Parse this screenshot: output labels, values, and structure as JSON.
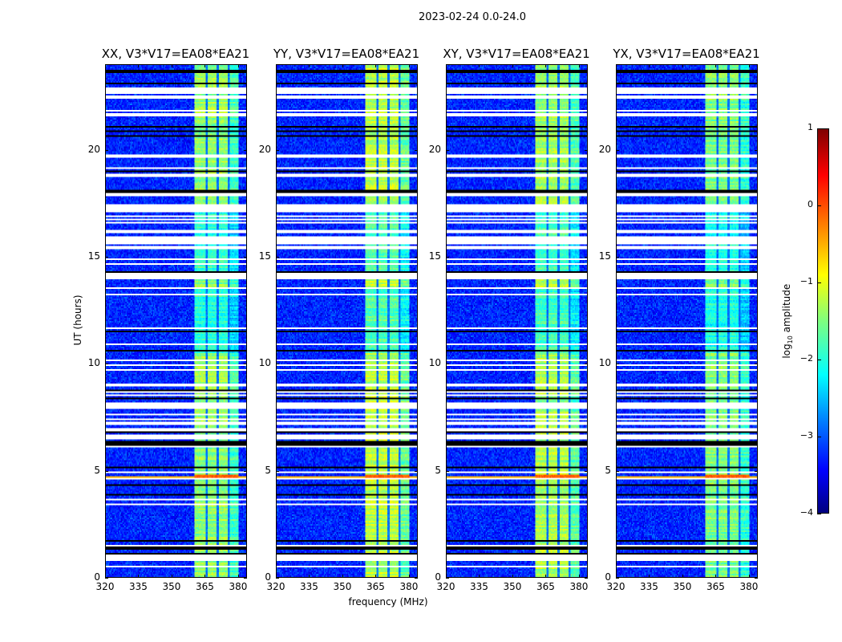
{
  "figure": {
    "suptitle": "2023-02-24 0.0-24.0",
    "xlabel": "frequency (MHz)",
    "ylabel": "UT (hours)"
  },
  "colorbar": {
    "label_prefix": "log",
    "label_sub": "10",
    "label_suffix": " amplitude",
    "range": [
      -4,
      1
    ],
    "ticks": [
      "1",
      "0",
      "−1",
      "−2",
      "−3",
      "−4"
    ],
    "tick_values": [
      1,
      0,
      -1,
      -2,
      -3,
      -4
    ],
    "colormap": "jet"
  },
  "chart_data": {
    "type": "heatmap",
    "x_range": [
      320,
      384
    ],
    "y_range": [
      0,
      24
    ],
    "x_ticks": [
      "320",
      "335",
      "350",
      "365",
      "380"
    ],
    "x_tick_values": [
      320,
      335,
      350,
      365,
      380
    ],
    "y_ticks": [
      "0",
      "5",
      "10",
      "15",
      "20"
    ],
    "y_tick_values": [
      0,
      5,
      10,
      15,
      20
    ],
    "value_label": "log10 amplitude",
    "background_level": -3.2,
    "band_MHz": [
      360.7,
      380.4
    ],
    "band_gaps_MHz": [
      366,
      371,
      376
    ],
    "rfi_event_hours": [
      4.55,
      4.8
    ],
    "flagged_white_hours": [
      [
        22.69,
        22.91
      ],
      [
        22.45,
        22.52
      ],
      [
        21.83,
        21.88
      ],
      [
        21.65,
        21.7
      ],
      [
        19.69,
        19.78
      ],
      [
        19.13,
        19.18
      ],
      [
        18.8,
        18.85
      ],
      [
        17.9,
        18.0
      ],
      [
        17.37,
        17.42
      ],
      [
        17.27,
        17.31
      ],
      [
        17.19,
        17.23
      ],
      [
        17.12,
        17.16
      ],
      [
        16.89,
        16.93
      ],
      [
        16.71,
        16.75
      ],
      [
        16.59,
        16.63
      ],
      [
        16.22,
        16.26
      ],
      [
        16.14,
        16.18
      ],
      [
        15.86,
        15.94
      ],
      [
        15.73,
        15.77
      ],
      [
        15.62,
        15.66
      ],
      [
        15.41,
        15.49
      ],
      [
        14.87,
        14.91
      ],
      [
        14.61,
        14.65
      ],
      [
        14.16,
        14.2
      ],
      [
        14.08,
        14.12
      ],
      [
        13.97,
        14.01
      ],
      [
        13.52,
        13.56
      ],
      [
        13.22,
        13.26
      ],
      [
        11.64,
        11.68
      ],
      [
        10.86,
        10.9
      ],
      [
        10.11,
        10.15
      ],
      [
        9.92,
        9.96
      ],
      [
        9.66,
        9.7
      ],
      [
        8.98,
        9.02
      ],
      [
        8.61,
        8.65
      ],
      [
        8.49,
        8.53
      ],
      [
        7.91,
        8.18
      ],
      [
        7.59,
        7.63
      ],
      [
        7.37,
        7.41
      ],
      [
        7.18,
        7.22
      ],
      [
        6.88,
        6.92
      ],
      [
        6.45,
        6.64
      ],
      [
        6.09,
        6.13
      ],
      [
        4.86,
        4.9
      ],
      [
        4.59,
        4.63
      ],
      [
        3.62,
        3.66
      ],
      [
        3.36,
        3.4
      ],
      [
        1.44,
        1.48
      ],
      [
        0.75,
        1.01
      ],
      [
        0.47,
        0.51
      ]
    ],
    "flagged_black_hours": [
      [
        23.68,
        23.72
      ],
      [
        23.15,
        23.19
      ],
      [
        21.09,
        21.13
      ],
      [
        20.87,
        20.91
      ],
      [
        20.64,
        20.68
      ],
      [
        18.96,
        19.0
      ],
      [
        18.0,
        18.15
      ],
      [
        14.27,
        14.31
      ],
      [
        11.49,
        11.53
      ],
      [
        10.56,
        10.6
      ],
      [
        8.68,
        8.72
      ],
      [
        8.34,
        8.38
      ],
      [
        6.75,
        6.8
      ],
      [
        6.15,
        6.34
      ],
      [
        5.12,
        5.16
      ],
      [
        4.26,
        4.3
      ],
      [
        3.84,
        3.88
      ],
      [
        1.67,
        1.71
      ],
      [
        1.33,
        1.37
      ],
      [
        1.03,
        1.07
      ]
    ],
    "panels": [
      {
        "title": "XX, V3*V17=EA08*EA21",
        "band_level": -1.4,
        "seed": 11
      },
      {
        "title": "YY, V3*V17=EA08*EA21",
        "band_level": -1.2,
        "seed": 23
      },
      {
        "title": "XY, V3*V17=EA08*EA21",
        "band_level": -1.3,
        "seed": 37
      },
      {
        "title": "YX, V3*V17=EA08*EA21",
        "band_level": -1.5,
        "seed": 53
      }
    ]
  }
}
